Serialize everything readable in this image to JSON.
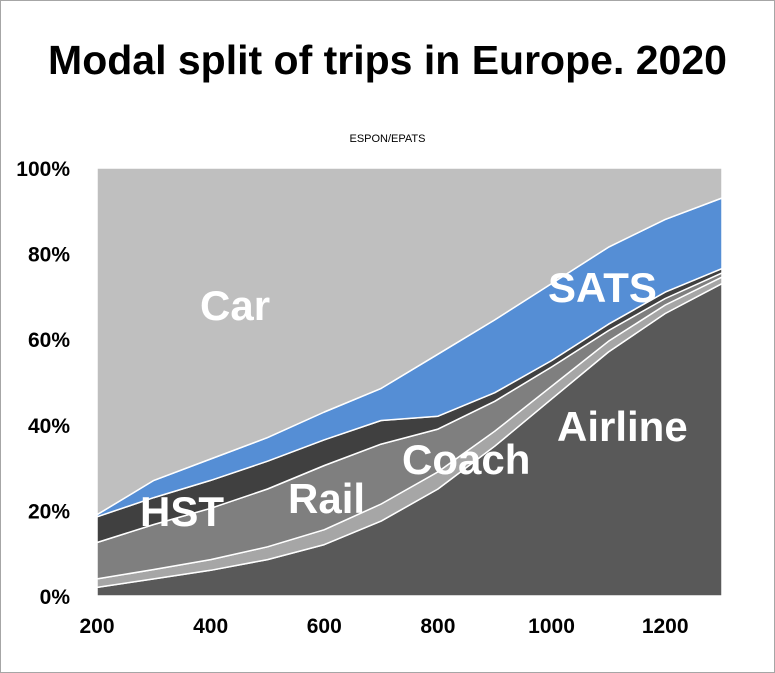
{
  "chart_data": {
    "type": "area",
    "stacked": true,
    "title": "Modal split of trips in Europe. 2020",
    "subtitle": "ESPON/EPATS",
    "xlabel": "",
    "ylabel": "",
    "x": [
      200,
      300,
      400,
      500,
      600,
      700,
      800,
      900,
      1000,
      1100,
      1200,
      1300
    ],
    "xticks": [
      "200",
      "400",
      "600",
      "800",
      "1000",
      "1200"
    ],
    "yticks": [
      "0%",
      "20%",
      "40%",
      "60%",
      "80%",
      "100%"
    ],
    "ylim": [
      0,
      100
    ],
    "xlim": [
      200,
      1300
    ],
    "legend": "none (labels placed inside areas)",
    "series": [
      {
        "name": "Airline",
        "color": "#595959",
        "values": [
          2,
          4,
          6,
          8.5,
          12,
          17.5,
          25,
          35,
          46,
          57,
          66,
          73
        ]
      },
      {
        "name": "Coach",
        "color": "#a6a6a6",
        "values": [
          2,
          2.2,
          2.5,
          3,
          3.5,
          4,
          4,
          3.5,
          3,
          2.5,
          2,
          1.5
        ]
      },
      {
        "name": "Rail",
        "color": "#7f7f7f",
        "values": [
          8.5,
          10.5,
          12,
          13.5,
          15,
          14,
          10,
          7,
          4.5,
          2.5,
          1.5,
          1
        ]
      },
      {
        "name": "HST",
        "color": "#404040",
        "values": [
          6,
          6.3,
          6.5,
          6.5,
          6,
          5.5,
          3,
          2,
          1.5,
          1.5,
          1.5,
          1
        ]
      },
      {
        "name": "SATS",
        "color": "#558ed5",
        "values": [
          0.5,
          4,
          5,
          5.5,
          6.5,
          7.5,
          14.5,
          17,
          18,
          18,
          17,
          16.5
        ]
      },
      {
        "name": "Car",
        "color": "#bfbfbf",
        "values": [
          81,
          73,
          68,
          63,
          57,
          51.5,
          43.5,
          35.5,
          27,
          18.5,
          12,
          7
        ]
      }
    ],
    "area_labels": [
      "Car",
      "SATS",
      "HST",
      "Rail",
      "Coach",
      "Airline"
    ]
  }
}
